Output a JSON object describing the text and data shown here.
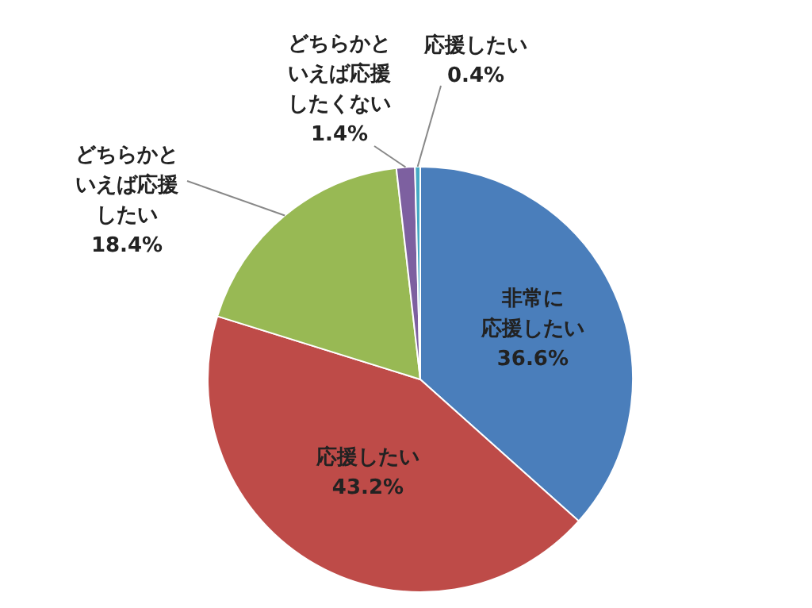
{
  "chart_data": {
    "type": "pie",
    "categories": [
      "非常に応援したい",
      "応援したい",
      "どちらかといえば応援したい",
      "どちらかといえば応援したくない",
      "応援したい"
    ],
    "values": [
      36.6,
      43.2,
      18.4,
      1.4,
      0.4
    ],
    "value_labels": [
      "36.6%",
      "43.2%",
      "18.4%",
      "1.4%",
      "0.4%"
    ],
    "colors": [
      "#4a7ebb",
      "#be4b48",
      "#98b954",
      "#7d60a0",
      "#46aac5"
    ],
    "legend": false
  }
}
